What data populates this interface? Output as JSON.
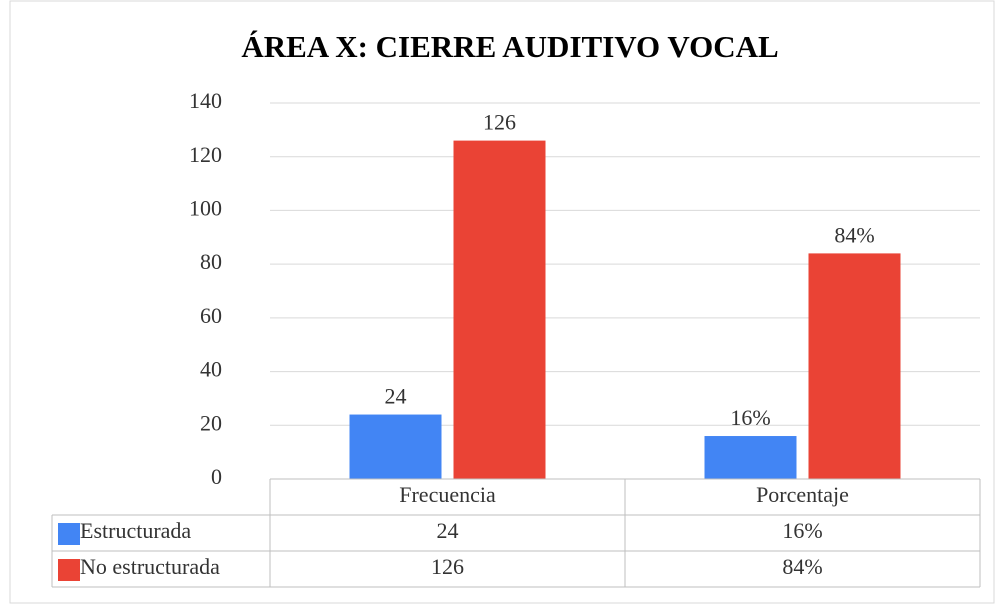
{
  "chart_data": {
    "type": "bar",
    "title": "ÁREA X: CIERRE AUDITIVO VOCAL",
    "categories": [
      "Frecuencia",
      "Porcentaje"
    ],
    "series": [
      {
        "name": "Estructurada",
        "color": "#4285f4",
        "values": [
          24,
          16
        ],
        "value_labels": [
          "24",
          "16%"
        ]
      },
      {
        "name": "No estructurada",
        "color": "#ea4335",
        "values": [
          126,
          84
        ],
        "value_labels": [
          "126",
          "84%"
        ]
      }
    ],
    "ylim": [
      0,
      140
    ],
    "yticks": [
      0,
      20,
      40,
      60,
      80,
      100,
      120,
      140
    ],
    "grid": true,
    "data_table": true
  }
}
